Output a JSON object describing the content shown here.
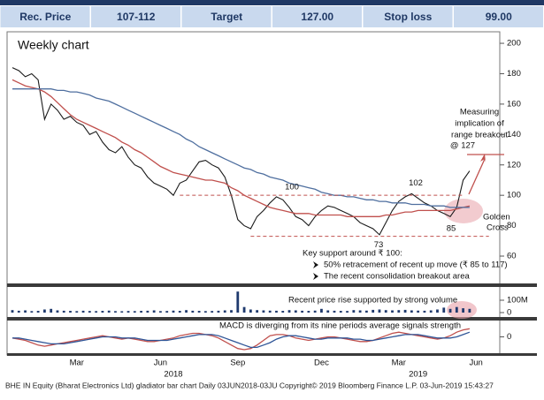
{
  "header": {
    "cells": [
      "Rec. Price",
      "107-112",
      "Target",
      "127.00",
      "Stop loss",
      "99.00"
    ]
  },
  "footer": "BHE IN Equity (Bharat Electronics Ltd) gladiator bar chart  Daily 03JUN2018-03JU  Copyright© 2019 Bloomberg Finance L.P.  03-Jun-2019 15:43:27",
  "chart_data": [
    {
      "type": "line",
      "title": "Weekly chart",
      "series": [
        {
          "color": "#1a1a1a",
          "values": [
            184,
            182,
            178,
            180,
            176,
            150,
            160,
            156,
            150,
            152,
            148,
            146,
            140,
            142,
            135,
            130,
            128,
            132,
            125,
            120,
            118,
            112,
            108,
            106,
            104,
            100,
            108,
            110,
            116,
            122,
            123,
            120,
            118,
            112,
            100,
            84,
            80,
            78,
            86,
            90,
            95,
            99,
            97,
            92,
            86,
            84,
            80,
            86,
            90,
            93,
            92,
            90,
            88,
            86,
            82,
            80,
            78,
            74,
            82,
            90,
            96,
            99,
            101,
            98,
            95,
            93,
            90,
            88,
            86,
            92,
            110,
            116,
            null,
            null,
            null,
            null
          ]
        },
        {
          "color": "#c0504d",
          "values": [
            176,
            174,
            172,
            171,
            170,
            168,
            165,
            161,
            157,
            153,
            150,
            148,
            146,
            144,
            142,
            140,
            138,
            135,
            133,
            130,
            128,
            125,
            122,
            119,
            117,
            115,
            114,
            113,
            112,
            111,
            110,
            110,
            109,
            108,
            105,
            103,
            100,
            98,
            96,
            94,
            92,
            91,
            90,
            89,
            88,
            88,
            88,
            87,
            87,
            87,
            87,
            87,
            86,
            86,
            86,
            86,
            86,
            86,
            87,
            87,
            88,
            89,
            89,
            90,
            90,
            90,
            90,
            90,
            90,
            91,
            92,
            93,
            null,
            null,
            null,
            null
          ]
        },
        {
          "color": "#4f6f9f",
          "values": [
            170,
            170,
            170,
            170,
            170,
            170,
            170,
            169,
            169,
            168,
            168,
            167,
            166,
            164,
            163,
            162,
            160,
            158,
            156,
            154,
            152,
            150,
            148,
            146,
            144,
            142,
            140,
            137,
            135,
            132,
            130,
            128,
            126,
            124,
            122,
            120,
            118,
            117,
            115,
            114,
            112,
            111,
            110,
            108,
            107,
            106,
            105,
            104,
            102,
            101,
            100,
            100,
            99,
            99,
            98,
            97,
            97,
            96,
            96,
            95,
            95,
            95,
            94,
            94,
            94,
            93,
            93,
            93,
            92,
            92,
            92,
            92,
            null,
            null,
            null,
            null
          ]
        }
      ],
      "ylim": [
        42,
        207
      ],
      "yticks": [
        60,
        80,
        100,
        120,
        140,
        160,
        180,
        200
      ],
      "support_lines": [
        100,
        73
      ],
      "peak_labels": [
        102,
        85
      ],
      "breakout_note": [
        "Measuring",
        "implication of",
        "range breakout",
        "@ 127"
      ],
      "cross_note": [
        "Golden",
        "Cross"
      ],
      "support_note": {
        "title": "Key support around ₹ 100:",
        "points": [
          "50% retracement of recent up move (₹ 85 to 117)",
          "The recent consolidation breakout area"
        ]
      }
    },
    {
      "type": "bar",
      "color": "#1f3a6e",
      "values": [
        20,
        15,
        18,
        12,
        14,
        25,
        30,
        18,
        15,
        14,
        12,
        15,
        13,
        12,
        14,
        16,
        12,
        11,
        13,
        12,
        14,
        15,
        18,
        12,
        13,
        16,
        14,
        20,
        15,
        14,
        12,
        13,
        15,
        18,
        20,
        170,
        45,
        25,
        20,
        18,
        16,
        15,
        14,
        20,
        18,
        15,
        14,
        16,
        30,
        18,
        15,
        14,
        13,
        20,
        18,
        16,
        22,
        25,
        20,
        18,
        20,
        22,
        18,
        16,
        15,
        18,
        25,
        40,
        30,
        45,
        35,
        30,
        null,
        null,
        null,
        null
      ],
      "ylim": [
        0,
        207
      ],
      "yticks": [
        0,
        {
          "value": 100,
          "label": "100M"
        }
      ],
      "note": "Recent price rise supported by strong volume"
    },
    {
      "type": "line",
      "series": [
        {
          "color": "#c0504d",
          "values": [
            -1,
            -2,
            -3,
            -5,
            -7,
            -8,
            -7,
            -6,
            -5,
            -4,
            -3,
            -2,
            -1,
            0,
            1,
            0,
            -1,
            -2,
            -1,
            -2,
            -3,
            -4,
            -4,
            -3,
            -2,
            -1,
            1,
            2,
            3,
            3,
            2,
            1,
            -1,
            -4,
            -7,
            -10,
            -11,
            -10,
            -7,
            -3,
            1,
            2,
            2,
            1,
            -1,
            -2,
            -3,
            -2,
            -1,
            0,
            0,
            -1,
            -2,
            -3,
            -4,
            -4,
            -3,
            -1,
            1,
            3,
            4,
            3,
            2,
            1,
            0,
            -1,
            -2,
            -1,
            1,
            4,
            6,
            7,
            null,
            null,
            null,
            null
          ]
        },
        {
          "color": "#2f5597",
          "values": [
            -1,
            -1,
            -2,
            -3,
            -4,
            -5,
            -6,
            -6,
            -6,
            -5,
            -4,
            -3,
            -2,
            -1,
            0,
            0,
            0,
            -1,
            -1,
            -1,
            -2,
            -3,
            -3,
            -3,
            -3,
            -2,
            -1,
            0,
            1,
            2,
            2,
            2,
            1,
            -1,
            -3,
            -5,
            -7,
            -9,
            -9,
            -7,
            -5,
            -2,
            0,
            1,
            1,
            0,
            -1,
            -2,
            -2,
            -1,
            -1,
            -1,
            -1,
            -2,
            -2,
            -3,
            -3,
            -2,
            -1,
            0,
            1,
            2,
            2,
            2,
            1,
            0,
            -1,
            -1,
            -1,
            0,
            2,
            4,
            null,
            null,
            null,
            null
          ]
        }
      ],
      "ylim": [
        -14,
        14
      ],
      "yticks": [
        0
      ],
      "note": "MACD is diverging from its nine periods average signals strength",
      "categories": [
        null,
        null,
        null,
        null,
        null,
        null,
        null,
        null,
        null,
        null,
        "Mar",
        null,
        null,
        null,
        null,
        null,
        null,
        null,
        null,
        null,
        null,
        null,
        null,
        "Jun",
        null,
        null,
        null,
        null,
        null,
        null,
        null,
        null,
        null,
        null,
        null,
        "Sep",
        null,
        null,
        null,
        null,
        null,
        null,
        null,
        null,
        null,
        null,
        null,
        null,
        "Dec",
        null,
        null,
        null,
        null,
        null,
        null,
        null,
        null,
        null,
        null,
        null,
        "Mar",
        null,
        null,
        null,
        null,
        null,
        null,
        null,
        null,
        null,
        null,
        null,
        "Jun",
        null,
        null,
        null
      ],
      "year_categories": [
        null,
        null,
        null,
        null,
        null,
        null,
        null,
        null,
        null,
        null,
        null,
        null,
        null,
        null,
        null,
        null,
        null,
        null,
        null,
        null,
        null,
        null,
        null,
        null,
        null,
        "2018",
        null,
        null,
        null,
        null,
        null,
        null,
        null,
        null,
        null,
        null,
        null,
        null,
        null,
        null,
        null,
        null,
        null,
        null,
        null,
        null,
        null,
        null,
        null,
        null,
        null,
        null,
        null,
        null,
        null,
        null,
        null,
        null,
        null,
        null,
        null,
        null,
        null,
        "2019",
        null,
        null,
        null,
        null,
        null,
        null,
        null,
        null,
        null
      ]
    }
  ]
}
